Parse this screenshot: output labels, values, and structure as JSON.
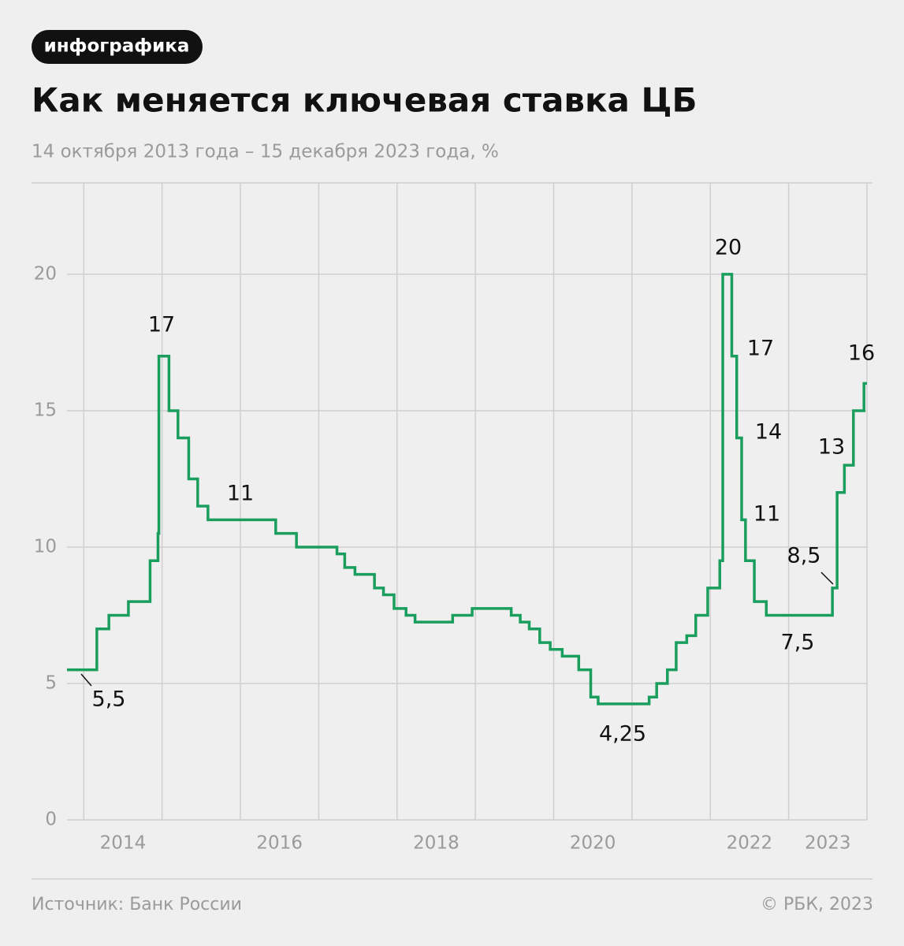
{
  "header": {
    "tag": "инфографика",
    "title": "Как меняется ключевая ставка ЦБ",
    "subtitle": "14 октября 2013 года – 15 декабря 2023 года, %"
  },
  "chart_data": {
    "type": "line",
    "step": true,
    "color": "#1a9e5e",
    "x": [
      2013.786,
      2014.167,
      2014.321,
      2014.57,
      2014.847,
      2014.948,
      2014.959,
      2015.088,
      2015.203,
      2015.34,
      2015.455,
      2015.586,
      2016.451,
      2016.716,
      2017.233,
      2017.332,
      2017.463,
      2017.712,
      2017.827,
      2017.962,
      2018.115,
      2018.23,
      2018.71,
      2018.959,
      2019.458,
      2019.573,
      2019.688,
      2019.822,
      2019.956,
      2020.109,
      2020.32,
      2020.473,
      2020.568,
      2021.219,
      2021.315,
      2021.452,
      2021.564,
      2021.699,
      2021.814,
      2021.967,
      2022.121,
      2022.159,
      2022.274,
      2022.337,
      2022.4,
      2022.449,
      2022.562,
      2022.715,
      2023.559,
      2023.619,
      2023.712,
      2023.827,
      2023.962
    ],
    "values": [
      5.5,
      7,
      7.5,
      8,
      9.5,
      10.5,
      17,
      15,
      14,
      12.5,
      11.5,
      11,
      10.5,
      10,
      9.75,
      9.25,
      9,
      8.5,
      8.25,
      7.75,
      7.5,
      7.25,
      7.5,
      7.75,
      7.5,
      7.25,
      7,
      6.5,
      6.25,
      6,
      5.5,
      4.5,
      4.25,
      4.5,
      5,
      5.5,
      6.5,
      6.75,
      7.5,
      8.5,
      9.5,
      20,
      17,
      14,
      11,
      9.5,
      8,
      7.5,
      8.5,
      12,
      13,
      15,
      16
    ],
    "value_labels": [
      "5,5",
      null,
      null,
      null,
      null,
      null,
      "17",
      null,
      null,
      null,
      null,
      "11",
      null,
      null,
      null,
      null,
      null,
      null,
      null,
      null,
      null,
      null,
      null,
      null,
      null,
      null,
      null,
      null,
      null,
      null,
      null,
      null,
      "4,25",
      null,
      null,
      null,
      null,
      null,
      null,
      null,
      null,
      "20",
      "17",
      "14",
      "11",
      null,
      null,
      "7,5",
      "8,5",
      null,
      "13",
      null,
      "16"
    ],
    "xlim": [
      2013.786,
      2024
    ],
    "ylim": [
      0,
      23.35
    ],
    "xticks": [
      2014,
      2016,
      2018,
      2020,
      2022,
      2023
    ],
    "xminor": [
      2015,
      2017,
      2019,
      2021,
      2024
    ],
    "yticks": [
      0,
      5,
      10,
      15,
      20
    ],
    "grid": true
  },
  "footer": {
    "source": "Источник: Банк России",
    "copyright": "© РБК, 2023"
  }
}
